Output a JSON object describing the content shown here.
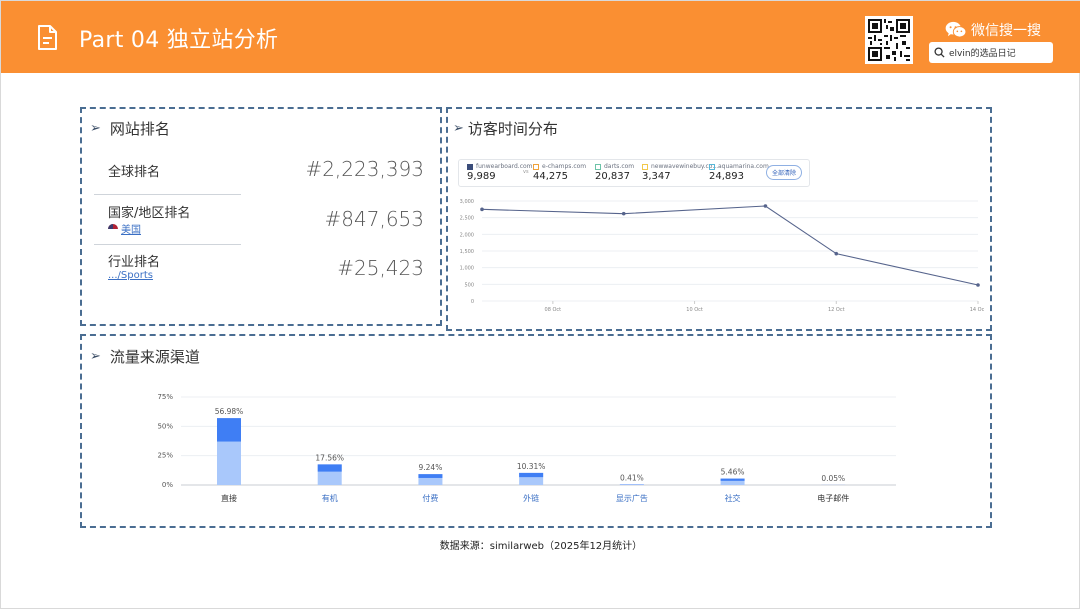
{
  "header": {
    "title": "Part 04 独立站分析",
    "wechat_label": "微信搜一搜",
    "search_text": "elvin的选品日记",
    "accent_color": "#fa8f32"
  },
  "rank_panel": {
    "title": "网站排名",
    "global_label": "全球排名",
    "global_value": "#2,223,393",
    "country_label": "国家/地区排名",
    "country_link": "美国",
    "country_value": "#847,653",
    "industry_label": "行业排名",
    "industry_link": ".../Sports",
    "industry_value": "#25,423"
  },
  "time_panel": {
    "title": "访客时间分布",
    "vs": "vs",
    "compare_button": "全部清除",
    "legend": [
      {
        "name": "funwearboard.com",
        "value": "9,989",
        "color": "#3b4d7a",
        "filled": true
      },
      {
        "name": "e-champs.com",
        "value": "44,275",
        "color": "#f0a23a",
        "filled": false
      },
      {
        "name": "darts.com",
        "value": "20,837",
        "color": "#6cc3a8",
        "filled": false
      },
      {
        "name": "newwavewinebuy.co...",
        "value": "3,347",
        "color": "#f2c84b",
        "filled": false
      },
      {
        "name": "aquamarina.com",
        "value": "24,893",
        "color": "#57b8d9",
        "filled": false
      }
    ]
  },
  "chart_data": [
    {
      "type": "line",
      "title": "",
      "x": [
        "07 Oct",
        "08 Oct",
        "09 Oct",
        "10 Oct",
        "11 Oct",
        "12 Oct",
        "13 Oct",
        "14 Oct"
      ],
      "x_tick_labels": [
        "08 Oct",
        "10 Oct",
        "12 Oct",
        "14 Oct"
      ],
      "series": [
        {
          "name": "funwearboard.com",
          "values": [
            2750,
            2620,
            2850,
            1420,
            480
          ],
          "x": [
            "07 Oct",
            "09 Oct",
            "11 Oct",
            "12 Oct",
            "14 Oct"
          ]
        }
      ],
      "y_ticks": [
        "0",
        "500",
        "1,000",
        "1,500",
        "2,000",
        "2,500",
        "3,000"
      ],
      "ylim": [
        0,
        3000
      ],
      "grid": true,
      "line_color": "#56648c"
    },
    {
      "type": "bar",
      "title": "流量来源渠道",
      "categories": [
        "直接",
        "有机",
        "付费",
        "外链",
        "显示广告",
        "社交",
        "电子邮件"
      ],
      "values": [
        56.98,
        17.56,
        9.24,
        10.31,
        0.41,
        5.46,
        0.05
      ],
      "value_labels": [
        "56.98%",
        "17.56%",
        "9.24%",
        "10.31%",
        "0.41%",
        "5.46%",
        "0.05%"
      ],
      "y_ticks": [
        "0%",
        "25%",
        "50%",
        "75%"
      ],
      "ylim": [
        0,
        75
      ],
      "colors": {
        "light": "#a9c8fb",
        "dark": "#3f7ef4"
      },
      "grid": true
    }
  ],
  "footer": {
    "source": "数据来源：similarweb（2025年12月统计）"
  }
}
